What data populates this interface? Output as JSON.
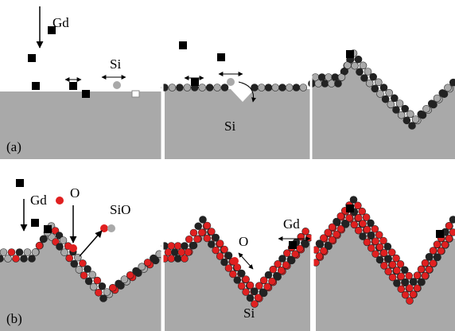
{
  "panel_a": {
    "label": "(a)",
    "gd": "Gd",
    "si_top": "Si",
    "si_substrate": "Si"
  },
  "panel_b": {
    "label": "(b)",
    "gd_left": "Gd",
    "o_left": "O",
    "sio": "SiO",
    "o_middle": "O",
    "gd_right": "Gd",
    "si": "Si"
  }
}
